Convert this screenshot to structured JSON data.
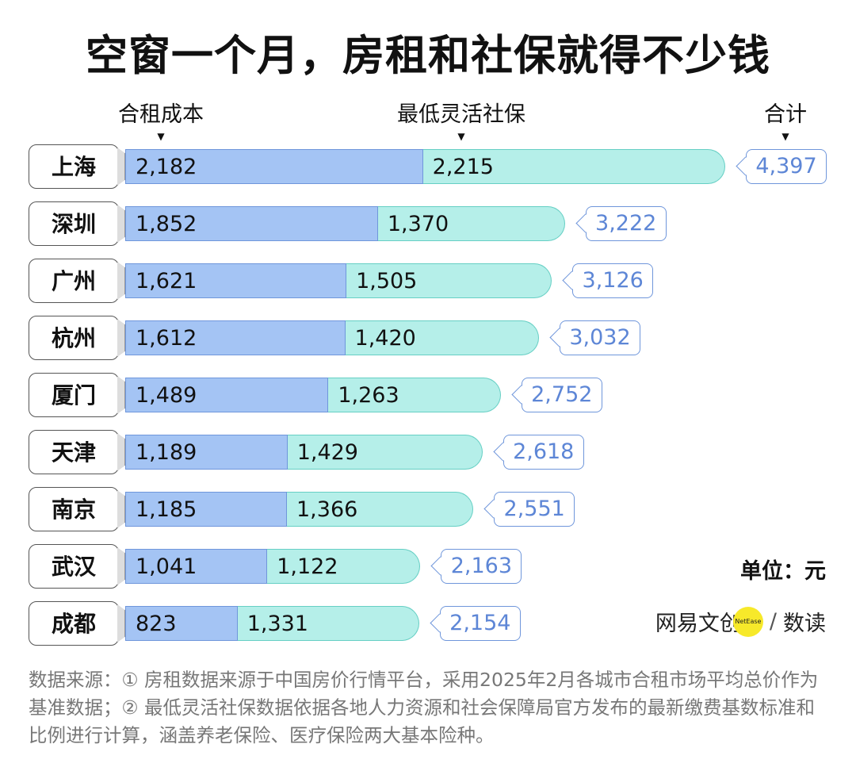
{
  "chart_data": {
    "type": "bar",
    "stacked": true,
    "orientation": "horizontal",
    "title": "空窗一个月，房租和社保就得不少钱",
    "categories": [
      "上海",
      "深圳",
      "广州",
      "杭州",
      "厦门",
      "天津",
      "南京",
      "武汉",
      "成都"
    ],
    "series": [
      {
        "name": "合租成本",
        "values": [
          2182,
          1852,
          1621,
          1612,
          1489,
          1189,
          1185,
          1041,
          823
        ],
        "labels": [
          "2,182",
          "1,852",
          "1,621",
          "1,612",
          "1,489",
          "1,189",
          "1,185",
          "1,041",
          "823"
        ],
        "color": "#a4c4f4"
      },
      {
        "name": "最低灵活社保",
        "values": [
          2215,
          1370,
          1505,
          1420,
          1263,
          1429,
          1366,
          1122,
          1331
        ],
        "labels": [
          "2,215",
          "1,370",
          "1,505",
          "1,420",
          "1,263",
          "1,429",
          "1,366",
          "1,122",
          "1,331"
        ],
        "color": "#b5efe9"
      }
    ],
    "totals_name": "合计",
    "totals": [
      "4,397",
      "3,222",
      "3,126",
      "3,032",
      "2,752",
      "2,618",
      "2,551",
      "2,163",
      "2,154"
    ],
    "unit": "单位：元"
  },
  "logo": {
    "name": "网易文创",
    "badge": "NetEase",
    "sub": "数读",
    "sep": "/"
  },
  "note": "数据来源：① 房租数据来源于中国房价行情平台，采用2025年2月各城市合租市场平均总价作为基准数据；② 最低灵活社保数据依据各地人力资源和社会保障局官方发布的最新缴费基数标准和比例进行计算，涵盖养老保险、医疗保险两大基本险种。"
}
